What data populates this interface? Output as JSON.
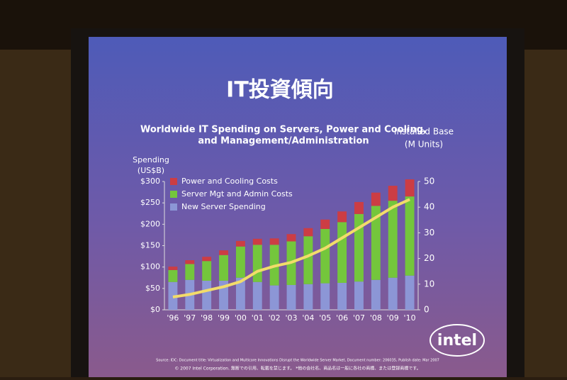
{
  "slide": {
    "title": "IT投資傾向",
    "logo": "intel",
    "source": "Source: IDC: Document title: Virtualization and Multicore Innovations Disrupt the Worldwide Server Market, Document number: 206035, Publish date: Mar 2007",
    "copyright": "© 2007 Intel Corporation. 無断での引用、転載を禁じます。   *他の会社名、商品名は一般に各社の商標、または登録商標です。"
  },
  "chart_data": {
    "type": "bar",
    "stacked": true,
    "title": [
      "Worldwide IT Spending on Servers, Power and Cooling,",
      "and Management/Administration"
    ],
    "ylabel": [
      "Spending",
      "(US$B)"
    ],
    "y2label": [
      "Installed Base",
      "(M Units)"
    ],
    "categories": [
      "'96",
      "'97",
      "'98",
      "'99",
      "'00",
      "'01",
      "'02",
      "'03",
      "'04",
      "'05",
      "'06",
      "'07",
      "'08",
      "'09",
      "'10"
    ],
    "series": [
      {
        "name": "New Server Spending",
        "color": "#8c96d6",
        "values": [
          65,
          70,
          68,
          68,
          75,
          65,
          57,
          58,
          60,
          62,
          63,
          66,
          70,
          75,
          80
        ]
      },
      {
        "name": "Server Mgt and Admin Costs",
        "color": "#74c63c",
        "values": [
          28,
          37,
          46,
          60,
          73,
          87,
          95,
          102,
          112,
          127,
          142,
          158,
          173,
          180,
          185
        ]
      },
      {
        "name": "Power and Cooling Costs",
        "color": "#cc3d44",
        "values": [
          8,
          9,
          10,
          11,
          13,
          14,
          15,
          17,
          19,
          22,
          25,
          28,
          31,
          35,
          40
        ]
      },
      {
        "name": "Installed Base",
        "type": "line",
        "axis": "y2",
        "color": "#f2dc6a",
        "values": [
          5,
          6,
          7.5,
          9,
          11,
          15,
          17,
          18.5,
          21,
          24,
          28,
          32,
          36,
          40,
          43
        ]
      }
    ],
    "legend_order": [
      2,
      1,
      0
    ],
    "ylim": [
      0,
      300
    ],
    "yticks": [
      {
        "value": 0,
        "label": "$0"
      },
      {
        "value": 50,
        "label": "$50"
      },
      {
        "value": 100,
        "label": "$100"
      },
      {
        "value": 150,
        "label": "$150"
      },
      {
        "value": 200,
        "label": "$200"
      },
      {
        "value": 250,
        "label": "$250"
      },
      {
        "value": 300,
        "label": "$300"
      }
    ],
    "y2lim": [
      0,
      50
    ],
    "y2ticks": [
      0,
      10,
      20,
      30,
      40,
      50
    ]
  }
}
